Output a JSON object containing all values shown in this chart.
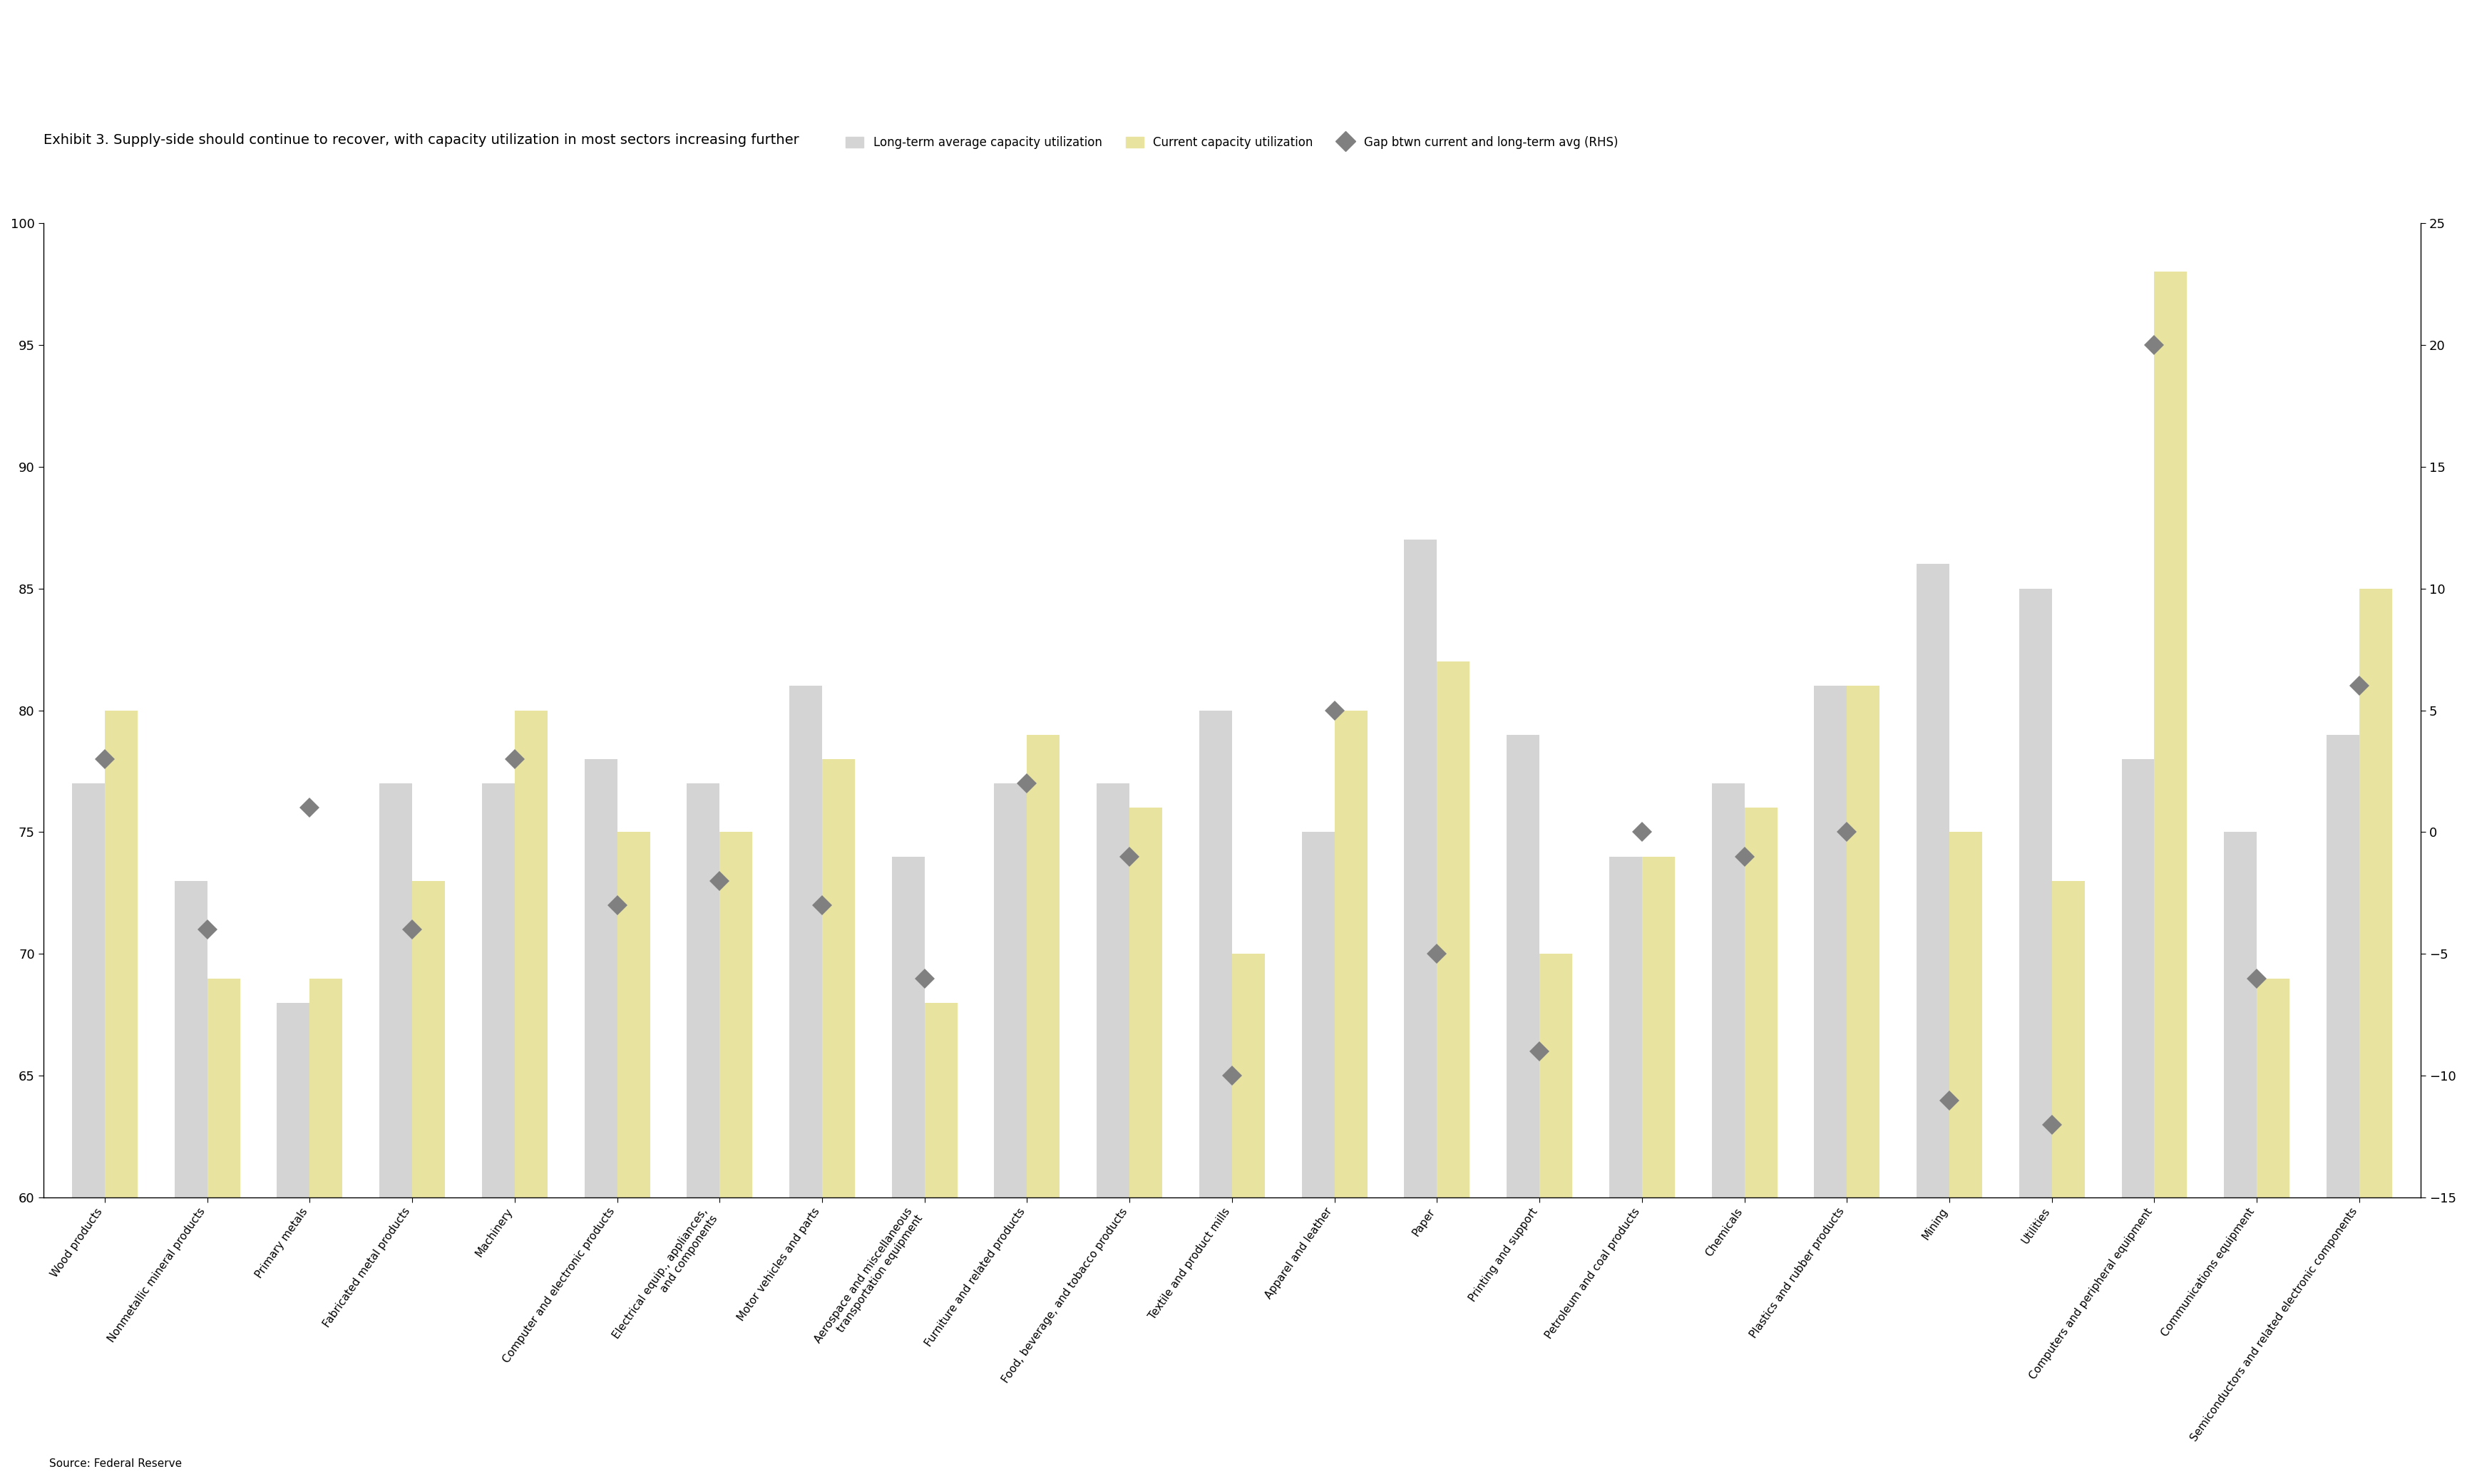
{
  "title": "Exhibit 3. Supply-side should continue to recover, with capacity utilization in most sectors increasing further",
  "source": "Source: Federal Reserve",
  "categories": [
    "Wood products",
    "Nonmetallic mineral products",
    "Primary metals",
    "Fabricated metal products",
    "Machinery",
    "Computer and electronic products",
    "Electrical equip., appliances,\nand components",
    "Motor vehicles and parts",
    "Aerospace and miscellaneous\ntransportation equipment",
    "Furniture and related products",
    "Food, beverage, and tobacco products",
    "Textile and product mills",
    "Apparel and leather",
    "Paper",
    "Printing and support",
    "Petroleum and coal products",
    "Chemicals",
    "Plastics and rubber products",
    "Mining",
    "Utilities",
    "Computers and peripheral equipment",
    "Communications equipment",
    "Semiconductors and related electronic components"
  ],
  "long_term_avg": [
    77,
    73,
    68,
    77,
    77,
    78,
    77,
    81,
    74,
    77,
    77,
    80,
    75,
    87,
    79,
    74,
    77,
    81,
    86,
    85,
    78,
    75,
    79
  ],
  "current_util": [
    80,
    69,
    69,
    73,
    80,
    75,
    75,
    78,
    68,
    79,
    76,
    70,
    80,
    82,
    70,
    74,
    76,
    81,
    75,
    73,
    98,
    69,
    85
  ],
  "gap": [
    3,
    -4,
    1,
    -4,
    3,
    -3,
    -2,
    -3,
    -6,
    2,
    -1,
    -10,
    5,
    -5,
    -9,
    0,
    -1,
    0,
    -11,
    -12,
    20,
    -6,
    6
  ],
  "bar_color_lt": "#d4d4d4",
  "bar_color_current": "#e8e4a0",
  "dot_color": "#808080",
  "ylim_left": [
    60,
    100
  ],
  "ylim_right": [
    -15,
    25
  ],
  "yticks_left": [
    60,
    65,
    70,
    75,
    80,
    85,
    90,
    95,
    100
  ],
  "yticks_right": [
    -15,
    -10,
    -5,
    0,
    5,
    10,
    15,
    20,
    25
  ],
  "legend_lt": "Long-term average capacity utilization",
  "legend_current": "Current capacity utilization",
  "legend_gap": "Gap btwn current and long-term avg (RHS)",
  "background_color": "#ffffff",
  "title_fontsize": 14,
  "tick_fontsize": 13,
  "label_fontsize": 11
}
